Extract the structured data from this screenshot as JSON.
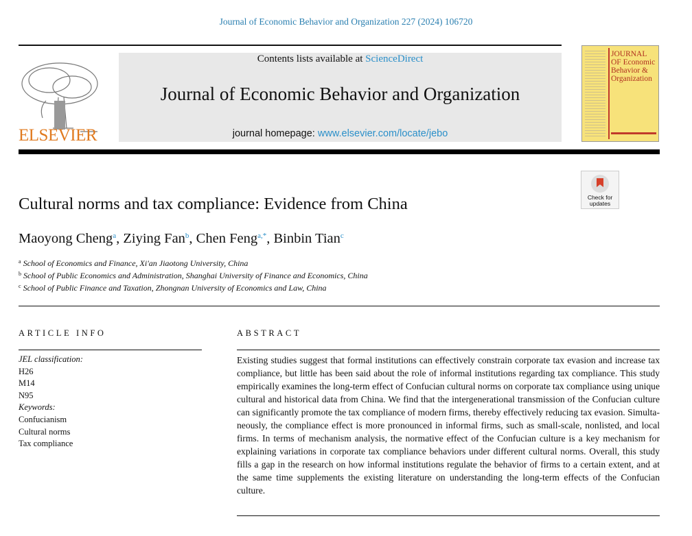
{
  "journal_ref": "Journal of Economic Behavior and Organization 227 (2024) 106720",
  "publisher": "ELSEVIER",
  "banner": {
    "contents_prefix": "Contents lists available at ",
    "contents_link": "ScienceDirect",
    "journal_title": "Journal of Economic Behavior and Organization",
    "homepage_prefix": "journal homepage: ",
    "homepage_link": "www.elsevier.com/locate/jebo"
  },
  "cover": {
    "title": "JOURNAL OF Economic Behavior & Organization"
  },
  "check_updates": "Check for updates",
  "article": {
    "title": "Cultural norms and tax compliance: Evidence from China",
    "authors": [
      {
        "name": "Maoyong Cheng",
        "sup": "a"
      },
      {
        "name": "Ziying Fan",
        "sup": "b"
      },
      {
        "name": "Chen Feng",
        "sup": "a,*"
      },
      {
        "name": "Binbin Tian",
        "sup": "c"
      }
    ],
    "affiliations": [
      {
        "sup": "a",
        "text": "School of Economics and Finance, Xi'an Jiaotong University, China"
      },
      {
        "sup": "b",
        "text": "School of Public Economics and Administration, Shanghai University of Finance and Economics, China"
      },
      {
        "sup": "c",
        "text": "School of Public Finance and Taxation, Zhongnan University of Economics and Law, China"
      }
    ]
  },
  "article_info": {
    "heading": "ARTICLE INFO",
    "jel_label": "JEL classification:",
    "jel": [
      "H26",
      "M14",
      "N95"
    ],
    "keywords_label": "Keywords:",
    "keywords": [
      "Confucianism",
      "Cultural norms",
      "Tax compliance"
    ]
  },
  "abstract": {
    "heading": "ABSTRACT",
    "text": "Existing studies suggest that formal institutions can effectively constrain corporate tax evasion and increase tax compliance, but little has been said about the role of informal institutions regarding tax compliance. This study empirically examines the long-term effect of Confucian cultural norms on corporate tax compliance using unique cultural and historical data from China. We find that the intergenerational transmission of the Confucian culture can significantly pro­mote the tax compliance of modern firms, thereby effectively reducing tax evasion. Simulta­neously, the compliance effect is more pronounced in informal firms, such as small-scale, non­listed, and local firms. In terms of mechanism analysis, the normative effect of the Confucian culture is a key mechanism for explaining variations in corporate tax compliance behaviors under different cultural norms. Overall, this study fills a gap in the research on how informal institutions regulate the behavior of firms to a certain extent, and at the same time supplements the existing literature on understanding the long-term effects of the Confucian culture."
  }
}
